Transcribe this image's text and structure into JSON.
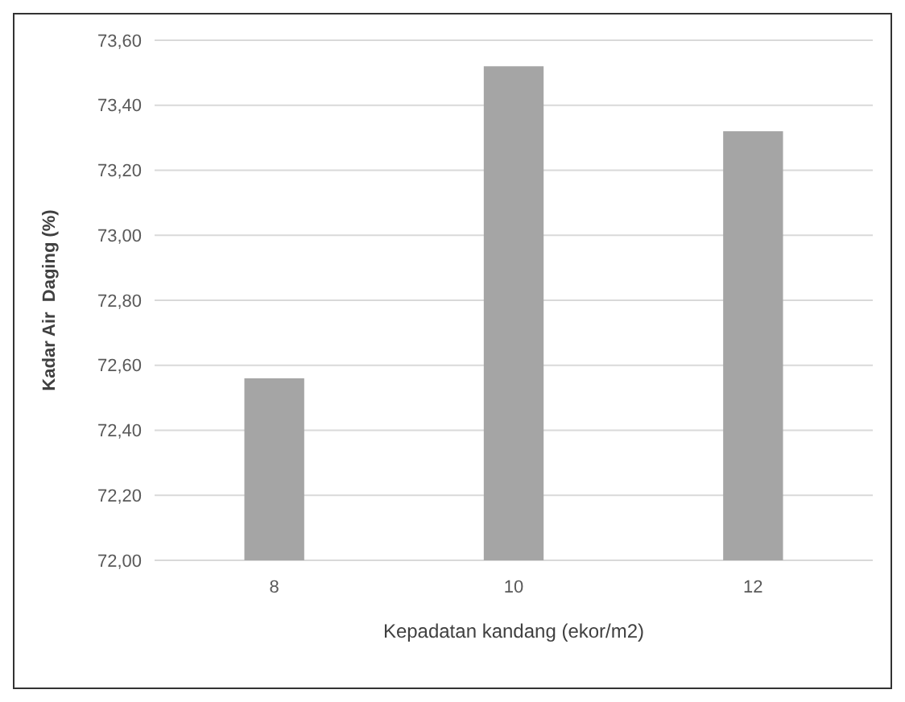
{
  "chart_data": {
    "type": "bar",
    "xlabel": "Kepadatan kandang (ekor/m2)",
    "ylabel": "Kadar Air  Daging (%)",
    "categories": [
      "8",
      "10",
      "12"
    ],
    "values": [
      72.56,
      73.52,
      73.32
    ],
    "color": "#a5a5a5",
    "ylim": [
      72,
      73.6
    ],
    "yticks": [
      {
        "value": 72,
        "label": "72,00"
      },
      {
        "value": 72.2,
        "label": "72,20"
      },
      {
        "value": 72.4,
        "label": "72,40"
      },
      {
        "value": 72.6,
        "label": "72,60"
      },
      {
        "value": 72.8,
        "label": "72,80"
      },
      {
        "value": 73,
        "label": "73,00"
      },
      {
        "value": 73.2,
        "label": "73,20"
      },
      {
        "value": 73.4,
        "label": "73,40"
      },
      {
        "value": 73.6,
        "label": "73,60"
      }
    ],
    "grid": "y"
  }
}
